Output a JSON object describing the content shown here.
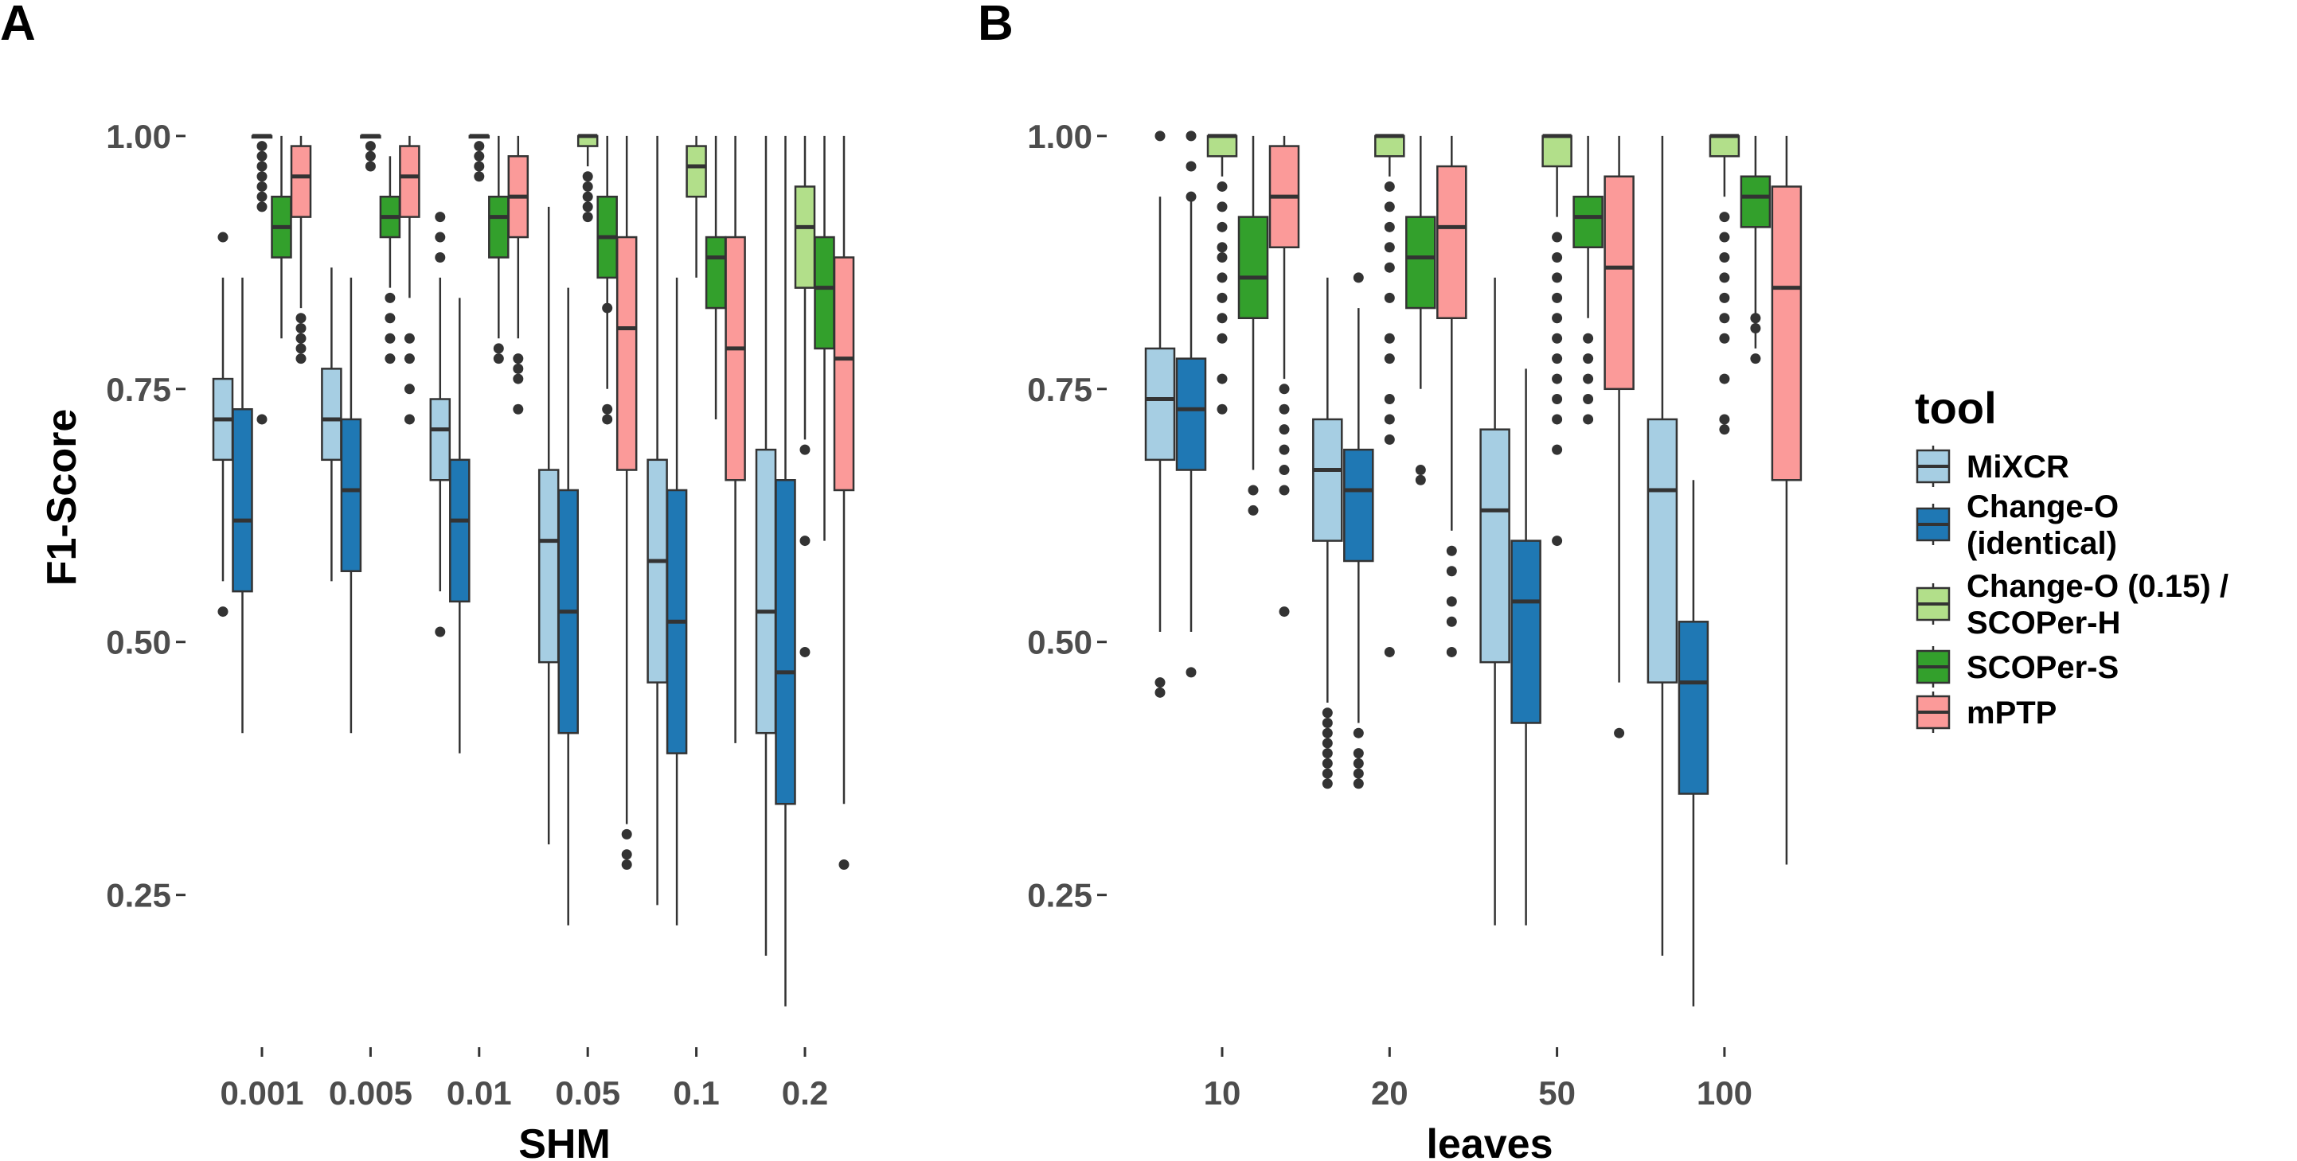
{
  "chart_data": [
    {
      "type": "boxplot",
      "panel_label": "A",
      "xlabel": "SHM",
      "ylabel": "F1-Score",
      "ylim": [
        0.12,
        1.04
      ],
      "yticks": [
        0.25,
        0.5,
        0.75,
        1.0
      ],
      "ytick_labels": [
        "0.25",
        "0.50",
        "0.75",
        "1.00"
      ],
      "categories": [
        "0.001",
        "0.005",
        "0.01",
        "0.05",
        "0.1",
        "0.2"
      ],
      "groups": [
        {
          "category": "0.001",
          "boxes": [
            {
              "tool": "MiXCR",
              "stats": [
                0.56,
                0.68,
                0.72,
                0.76,
                0.86
              ],
              "outliers": [
                0.9,
                0.53
              ]
            },
            {
              "tool": "Change-O (identical)",
              "stats": [
                0.41,
                0.55,
                0.62,
                0.73,
                0.86
              ],
              "outliers": []
            },
            {
              "tool": "Change-O (0.15) / SCOPer-H",
              "stats": [
                1.0,
                1.0,
                1.0,
                1.0,
                1.0
              ],
              "outliers": [
                0.99,
                0.98,
                0.97,
                0.96,
                0.95,
                0.94,
                0.93,
                0.72
              ]
            },
            {
              "tool": "SCOPer-S",
              "stats": [
                0.8,
                0.88,
                0.91,
                0.94,
                1.0
              ],
              "outliers": []
            },
            {
              "tool": "mPTP",
              "stats": [
                0.83,
                0.92,
                0.96,
                0.99,
                1.0
              ],
              "outliers": [
                0.82,
                0.81,
                0.8,
                0.79,
                0.78
              ]
            }
          ]
        },
        {
          "category": "0.005",
          "boxes": [
            {
              "tool": "MiXCR",
              "stats": [
                0.56,
                0.68,
                0.72,
                0.77,
                0.87
              ],
              "outliers": []
            },
            {
              "tool": "Change-O (identical)",
              "stats": [
                0.41,
                0.57,
                0.65,
                0.72,
                0.86
              ],
              "outliers": []
            },
            {
              "tool": "Change-O (0.15) / SCOPer-H",
              "stats": [
                1.0,
                1.0,
                1.0,
                1.0,
                1.0
              ],
              "outliers": [
                0.99,
                0.98,
                0.97
              ]
            },
            {
              "tool": "SCOPer-S",
              "stats": [
                0.85,
                0.9,
                0.92,
                0.94,
                0.98
              ],
              "outliers": [
                0.84,
                0.82,
                0.8,
                0.78
              ]
            },
            {
              "tool": "mPTP",
              "stats": [
                0.84,
                0.92,
                0.96,
                0.99,
                1.0
              ],
              "outliers": [
                0.8,
                0.78,
                0.75,
                0.72
              ]
            }
          ]
        },
        {
          "category": "0.01",
          "boxes": [
            {
              "tool": "MiXCR",
              "stats": [
                0.55,
                0.66,
                0.71,
                0.74,
                0.86
              ],
              "outliers": [
                0.92,
                0.9,
                0.88,
                0.51
              ]
            },
            {
              "tool": "Change-O (identical)",
              "stats": [
                0.39,
                0.54,
                0.62,
                0.68,
                0.84
              ],
              "outliers": []
            },
            {
              "tool": "Change-O (0.15) / SCOPer-H",
              "stats": [
                1.0,
                1.0,
                1.0,
                1.0,
                1.0
              ],
              "outliers": [
                0.99,
                0.98,
                0.97,
                0.96
              ]
            },
            {
              "tool": "SCOPer-S",
              "stats": [
                0.8,
                0.88,
                0.92,
                0.94,
                1.0
              ],
              "outliers": [
                0.79,
                0.78
              ]
            },
            {
              "tool": "mPTP",
              "stats": [
                0.8,
                0.9,
                0.94,
                0.98,
                1.0
              ],
              "outliers": [
                0.78,
                0.77,
                0.76,
                0.73
              ]
            }
          ]
        },
        {
          "category": "0.05",
          "boxes": [
            {
              "tool": "MiXCR",
              "stats": [
                0.3,
                0.48,
                0.6,
                0.67,
                0.93
              ],
              "outliers": []
            },
            {
              "tool": "Change-O (identical)",
              "stats": [
                0.22,
                0.41,
                0.53,
                0.65,
                0.85
              ],
              "outliers": []
            },
            {
              "tool": "Change-O (0.15) / SCOPer-H",
              "stats": [
                0.97,
                0.99,
                1.0,
                1.0,
                1.0
              ],
              "outliers": [
                0.96,
                0.95,
                0.94,
                0.93,
                0.92
              ]
            },
            {
              "tool": "SCOPer-S",
              "stats": [
                0.75,
                0.86,
                0.9,
                0.94,
                1.0
              ],
              "outliers": [
                0.83,
                0.73,
                0.72
              ]
            },
            {
              "tool": "mPTP",
              "stats": [
                0.32,
                0.67,
                0.81,
                0.9,
                1.0
              ],
              "outliers": [
                0.31,
                0.29,
                0.28
              ]
            }
          ]
        },
        {
          "category": "0.1",
          "boxes": [
            {
              "tool": "MiXCR",
              "stats": [
                0.24,
                0.46,
                0.58,
                0.68,
                1.0
              ],
              "outliers": []
            },
            {
              "tool": "Change-O (identical)",
              "stats": [
                0.22,
                0.39,
                0.52,
                0.65,
                0.86
              ],
              "outliers": []
            },
            {
              "tool": "Change-O (0.15) / SCOPer-H",
              "stats": [
                0.86,
                0.94,
                0.97,
                0.99,
                1.0
              ],
              "outliers": []
            },
            {
              "tool": "SCOPer-S",
              "stats": [
                0.72,
                0.83,
                0.88,
                0.9,
                1.0
              ],
              "outliers": []
            },
            {
              "tool": "mPTP",
              "stats": [
                0.4,
                0.66,
                0.79,
                0.9,
                1.0
              ],
              "outliers": []
            }
          ]
        },
        {
          "category": "0.2",
          "boxes": [
            {
              "tool": "MiXCR",
              "stats": [
                0.19,
                0.41,
                0.53,
                0.69,
                1.0
              ],
              "outliers": []
            },
            {
              "tool": "Change-O (identical)",
              "stats": [
                0.14,
                0.34,
                0.47,
                0.66,
                1.0
              ],
              "outliers": []
            },
            {
              "tool": "Change-O (0.15) / SCOPer-H",
              "stats": [
                0.7,
                0.85,
                0.91,
                0.95,
                1.0
              ],
              "outliers": [
                0.69,
                0.6,
                0.49
              ]
            },
            {
              "tool": "SCOPer-S",
              "stats": [
                0.6,
                0.79,
                0.85,
                0.9,
                1.0
              ],
              "outliers": []
            },
            {
              "tool": "mPTP",
              "stats": [
                0.34,
                0.65,
                0.78,
                0.88,
                1.0
              ],
              "outliers": [
                0.28
              ]
            }
          ]
        }
      ]
    },
    {
      "type": "boxplot",
      "panel_label": "B",
      "xlabel": "leaves",
      "ylabel": "",
      "ylim": [
        0.12,
        1.04
      ],
      "yticks": [
        0.25,
        0.5,
        0.75,
        1.0
      ],
      "ytick_labels": [
        "0.25",
        "0.50",
        "0.75",
        "1.00"
      ],
      "categories": [
        "10",
        "20",
        "50",
        "100"
      ],
      "groups": [
        {
          "category": "10",
          "boxes": [
            {
              "tool": "MiXCR",
              "stats": [
                0.51,
                0.68,
                0.74,
                0.79,
                0.94
              ],
              "outliers": [
                1.0,
                0.46,
                0.45
              ]
            },
            {
              "tool": "Change-O (identical)",
              "stats": [
                0.51,
                0.67,
                0.73,
                0.78,
                0.94
              ],
              "outliers": [
                1.0,
                0.97,
                0.94,
                0.47
              ]
            },
            {
              "tool": "Change-O (0.15) / SCOPer-H",
              "stats": [
                0.96,
                0.98,
                1.0,
                1.0,
                1.0
              ],
              "outliers": [
                0.95,
                0.93,
                0.91,
                0.89,
                0.88,
                0.86,
                0.84,
                0.82,
                0.8,
                0.76,
                0.73
              ]
            },
            {
              "tool": "SCOPer-S",
              "stats": [
                0.67,
                0.82,
                0.86,
                0.92,
                1.0
              ],
              "outliers": [
                0.65,
                0.63
              ]
            },
            {
              "tool": "mPTP",
              "stats": [
                0.76,
                0.89,
                0.94,
                0.99,
                1.0
              ],
              "outliers": [
                0.75,
                0.73,
                0.71,
                0.69,
                0.67,
                0.65,
                0.53
              ]
            }
          ]
        },
        {
          "category": "20",
          "boxes": [
            {
              "tool": "MiXCR",
              "stats": [
                0.44,
                0.6,
                0.67,
                0.72,
                0.86
              ],
              "outliers": [
                0.43,
                0.42,
                0.41,
                0.4,
                0.39,
                0.38,
                0.37,
                0.36
              ]
            },
            {
              "tool": "Change-O (identical)",
              "stats": [
                0.42,
                0.58,
                0.65,
                0.69,
                0.83
              ],
              "outliers": [
                0.86,
                0.41,
                0.39,
                0.38,
                0.37,
                0.36
              ]
            },
            {
              "tool": "Change-O (0.15) / SCOPer-H",
              "stats": [
                0.96,
                0.98,
                1.0,
                1.0,
                1.0
              ],
              "outliers": [
                0.95,
                0.93,
                0.91,
                0.89,
                0.87,
                0.84,
                0.8,
                0.78,
                0.74,
                0.72,
                0.7,
                0.49
              ]
            },
            {
              "tool": "SCOPer-S",
              "stats": [
                0.75,
                0.83,
                0.88,
                0.92,
                1.0
              ],
              "outliers": [
                0.67,
                0.66
              ]
            },
            {
              "tool": "mPTP",
              "stats": [
                0.61,
                0.82,
                0.91,
                0.97,
                1.0
              ],
              "outliers": [
                0.59,
                0.57,
                0.54,
                0.52,
                0.49
              ]
            }
          ]
        },
        {
          "category": "50",
          "boxes": [
            {
              "tool": "MiXCR",
              "stats": [
                0.22,
                0.48,
                0.63,
                0.71,
                0.86
              ],
              "outliers": []
            },
            {
              "tool": "Change-O (identical)",
              "stats": [
                0.22,
                0.42,
                0.54,
                0.6,
                0.77
              ],
              "outliers": []
            },
            {
              "tool": "Change-O (0.15) / SCOPer-H",
              "stats": [
                0.92,
                0.97,
                1.0,
                1.0,
                1.0
              ],
              "outliers": [
                0.9,
                0.88,
                0.86,
                0.84,
                0.82,
                0.8,
                0.78,
                0.76,
                0.74,
                0.72,
                0.69,
                0.6
              ]
            },
            {
              "tool": "SCOPer-S",
              "stats": [
                0.82,
                0.89,
                0.92,
                0.94,
                1.0
              ],
              "outliers": [
                0.8,
                0.78,
                0.76,
                0.74,
                0.72
              ]
            },
            {
              "tool": "mPTP",
              "stats": [
                0.46,
                0.75,
                0.87,
                0.96,
                1.0
              ],
              "outliers": [
                0.41
              ]
            }
          ]
        },
        {
          "category": "100",
          "boxes": [
            {
              "tool": "MiXCR",
              "stats": [
                0.19,
                0.46,
                0.65,
                0.72,
                1.0
              ],
              "outliers": []
            },
            {
              "tool": "Change-O (identical)",
              "stats": [
                0.14,
                0.35,
                0.46,
                0.52,
                0.66
              ],
              "outliers": []
            },
            {
              "tool": "Change-O (0.15) / SCOPer-H",
              "stats": [
                0.94,
                0.98,
                1.0,
                1.0,
                1.0
              ],
              "outliers": [
                0.92,
                0.9,
                0.88,
                0.86,
                0.84,
                0.82,
                0.8,
                0.76,
                0.72,
                0.71
              ]
            },
            {
              "tool": "SCOPer-S",
              "stats": [
                0.79,
                0.91,
                0.94,
                0.96,
                1.0
              ],
              "outliers": [
                0.82,
                0.81,
                0.78
              ]
            },
            {
              "tool": "mPTP",
              "stats": [
                0.28,
                0.66,
                0.85,
                0.95,
                1.0
              ],
              "outliers": []
            }
          ]
        }
      ]
    }
  ],
  "legend": {
    "title": "tool",
    "position": "right",
    "items": [
      {
        "tool": "MiXCR",
        "lines": [
          "MiXCR"
        ],
        "color": "#a6cee3"
      },
      {
        "tool": "Change-O (identical)",
        "lines": [
          "Change-O",
          "(identical)"
        ],
        "color": "#1f78b4"
      },
      {
        "tool": "Change-O (0.15) / SCOPer-H",
        "lines": [
          "Change-O (0.15) /",
          "SCOPer-H"
        ],
        "color": "#b2df8a"
      },
      {
        "tool": "SCOPer-S",
        "lines": [
          "SCOPer-S"
        ],
        "color": "#33a02c"
      },
      {
        "tool": "mPTP",
        "lines": [
          "mPTP"
        ],
        "color": "#fb9a99"
      }
    ]
  },
  "style": {
    "outline_color": "#333333",
    "tick_color": "#333333",
    "tick_label_color": "#4d4d4d",
    "background": "#ffffff"
  }
}
